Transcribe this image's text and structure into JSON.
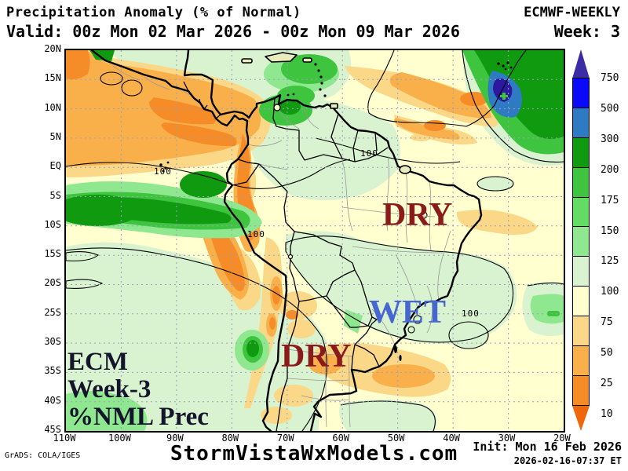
{
  "header": {
    "title": "Precipitation Anomaly (% of Normal)",
    "model": "ECMWF-WEEKLY",
    "valid": "Valid: 00z Mon 02 Mar 2026 - 00z Mon 09 Mar 2026",
    "week": "Week: 3"
  },
  "map": {
    "labels": {
      "dry_northeast": "DRY",
      "wet": "WET",
      "dry_south": "DRY",
      "corner_line1": "ECM",
      "corner_line2": "Week-3",
      "corner_line3": "%NML Prec",
      "contour_value": "100"
    },
    "label_colors": {
      "dry": "#8b1a1a",
      "wet": "#4667d2",
      "corner": "#14142c"
    }
  },
  "axes": {
    "lat_ticks": [
      "20N",
      "15N",
      "10N",
      "5N",
      "EQ",
      "5S",
      "10S",
      "15S",
      "20S",
      "25S",
      "30S",
      "35S",
      "40S",
      "45S"
    ],
    "lon_ticks": [
      "110W",
      "100W",
      "90W",
      "80W",
      "70W",
      "60W",
      "50W",
      "40W",
      "30W",
      "20W"
    ]
  },
  "colorbar": {
    "levels": [
      "750",
      "500",
      "300",
      "200",
      "175",
      "150",
      "125",
      "100",
      "75",
      "50",
      "25",
      "10"
    ],
    "segment_colors": [
      "#0a0af8",
      "#2e7bc4",
      "#0f9a10",
      "#3ec43e",
      "#63dc63",
      "#8fe88f",
      "#d9f2cf",
      "#ffffcf",
      "#fad887",
      "#f9b04a",
      "#f68c28"
    ],
    "arrow_top_color": "#3c2ba6",
    "arrow_bottom_color": "#f0660a"
  },
  "footer": {
    "credit": "GrADS: COLA/IGES",
    "site": "StormVistaWxModels.com",
    "init": "Init: Mon 16 Feb 2026",
    "init_time": "2026-02-16-07:37 ET"
  }
}
